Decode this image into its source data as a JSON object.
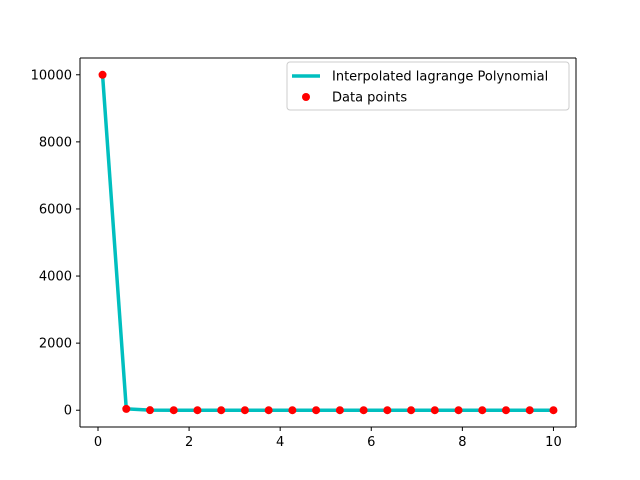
{
  "chart_data": {
    "type": "line",
    "series": [
      {
        "name": "Interpolated lagrange Polynomial",
        "kind": "line",
        "color": "#00BFBF",
        "x": [
          0.1,
          0.621,
          1.142,
          1.663,
          2.184,
          2.705,
          3.226,
          3.747,
          4.268,
          4.789,
          5.311,
          5.832,
          6.353,
          6.874,
          7.395,
          7.916,
          8.437,
          8.958,
          9.479,
          10.0
        ],
        "y": [
          10000,
          40,
          2,
          1,
          0.5,
          0.3,
          0.2,
          0.15,
          0.1,
          0.08,
          0.07,
          0.06,
          0.05,
          0.04,
          0.035,
          0.03,
          0.03,
          0.02,
          0.02,
          0.01
        ]
      },
      {
        "name": "Data points",
        "kind": "points",
        "color": "#FF0000",
        "x": [
          0.1,
          0.621,
          1.142,
          1.663,
          2.184,
          2.705,
          3.226,
          3.747,
          4.268,
          4.789,
          5.311,
          5.832,
          6.353,
          6.874,
          7.395,
          7.916,
          8.437,
          8.958,
          9.479,
          10.0
        ],
        "y": [
          10000,
          40,
          2,
          1,
          0.5,
          0.3,
          0.2,
          0.15,
          0.1,
          0.08,
          0.07,
          0.06,
          0.05,
          0.04,
          0.035,
          0.03,
          0.03,
          0.02,
          0.02,
          0.01
        ]
      }
    ],
    "xlim": [
      -0.395,
      10.495
    ],
    "ylim": [
      -500,
      10500
    ],
    "xticks": [
      0,
      2,
      4,
      6,
      8,
      10
    ],
    "xtick_labels": [
      "0",
      "2",
      "4",
      "6",
      "8",
      "10"
    ],
    "yticks": [
      0,
      2000,
      4000,
      6000,
      8000,
      10000
    ],
    "ytick_labels": [
      "0",
      "2000",
      "4000",
      "6000",
      "8000",
      "10000"
    ],
    "legend": {
      "position": "top-right",
      "entries": [
        "Interpolated lagrange Polynomial",
        "Data points"
      ]
    },
    "grid": false
  }
}
